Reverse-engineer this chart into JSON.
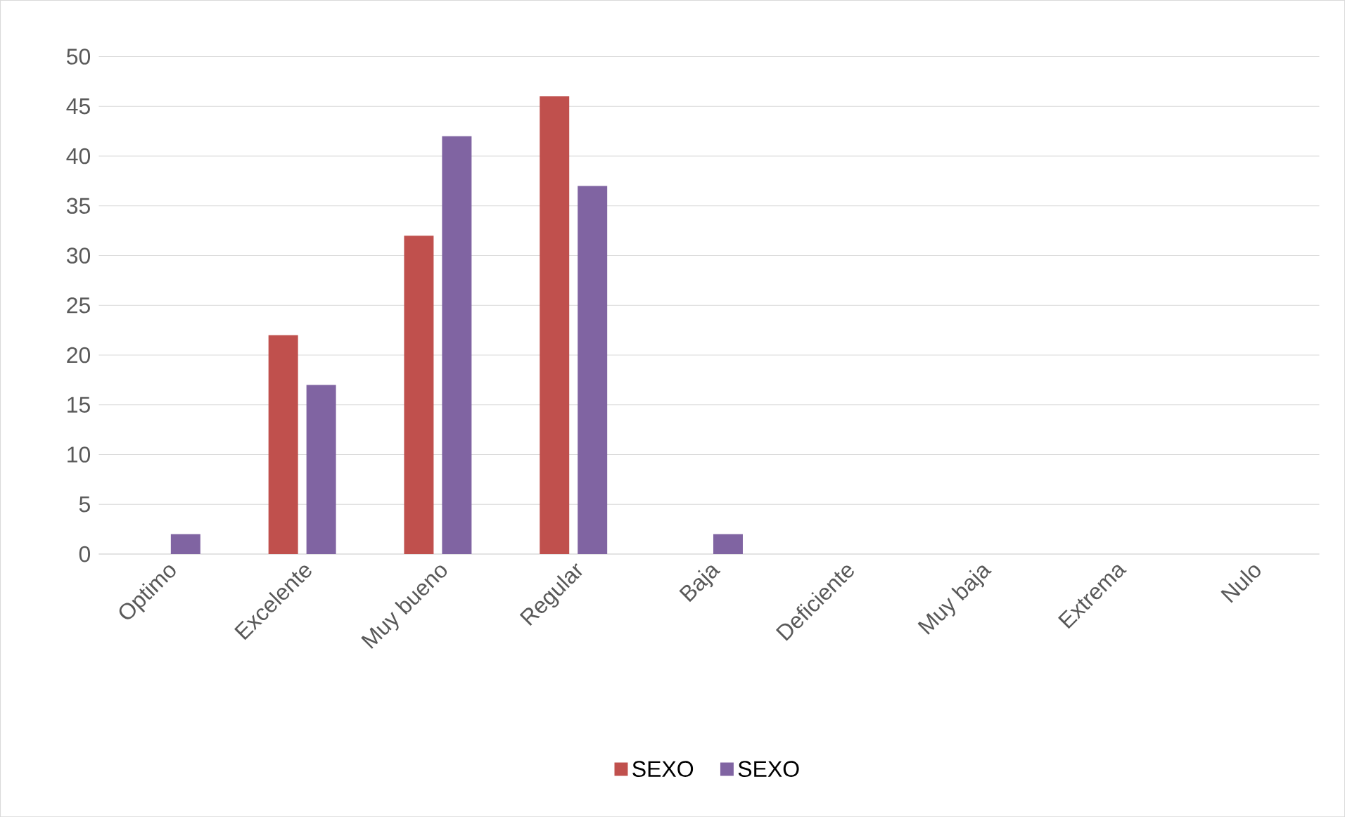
{
  "chart_data": {
    "type": "bar",
    "categories": [
      "Optimo",
      "Excelente",
      "Muy bueno",
      "Regular",
      "Baja",
      "Deficiente",
      "Muy baja",
      "Extrema",
      "Nulo"
    ],
    "series": [
      {
        "name": "SEXO",
        "color": "#c0504d",
        "values": [
          0,
          22,
          32,
          46,
          0,
          0,
          0,
          0,
          0
        ]
      },
      {
        "name": "SEXO",
        "color": "#8064a2",
        "values": [
          2,
          17,
          42,
          37,
          2,
          0,
          0,
          0,
          0
        ]
      }
    ],
    "ylim": [
      0,
      50
    ],
    "yticks": [
      0,
      5,
      10,
      15,
      20,
      25,
      30,
      35,
      40,
      45,
      50
    ],
    "grid": "y",
    "legend": "bottom"
  }
}
